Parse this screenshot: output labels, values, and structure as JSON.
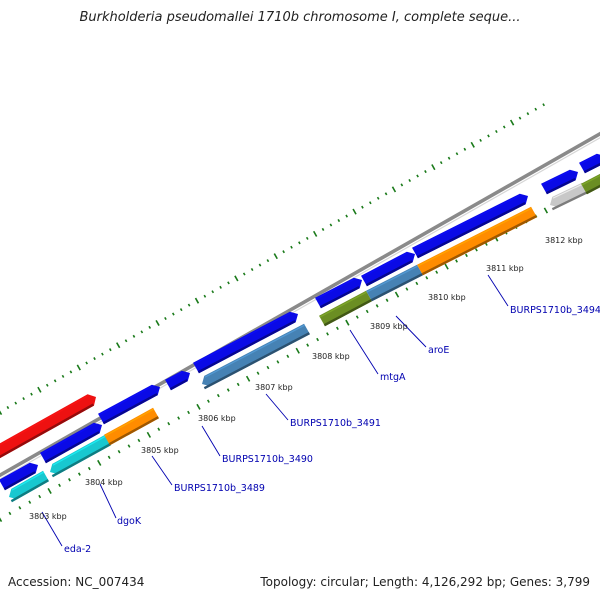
{
  "title": "Burkholderia pseudomallei 1710b chromosome I, complete seque...",
  "footer": {
    "accession": "Accession: NC_007434",
    "summary": "Topology: circular; Length: 4,126,292 bp; Genes: 3,799"
  },
  "colors": {
    "forward_gene": "#0a0ae6",
    "reverse_blue": "#4682b4",
    "reverse_orange": "#ff8c00",
    "reverse_cyan": "#18c8d0",
    "reverse_green": "#6b8e23",
    "reverse_grey": "#c8c8c8",
    "red_gene": "#ee1111",
    "backbone": "#8a8a8a",
    "ticks": "#1a7a1a",
    "label": "#0000b0"
  },
  "scale_labels": [
    "3803 kbp",
    "3804 kbp",
    "3805 kbp",
    "3806 kbp",
    "3807 kbp",
    "3808 kbp",
    "3809 kbp",
    "3810 kbp",
    "3811 kbp",
    "3812 kbp"
  ],
  "gene_labels": [
    "eda-2",
    "dgoK",
    "BURPS1710b_3489",
    "BURPS1710b_3490",
    "BURPS1710b_3491",
    "mtgA",
    "aroE",
    "BURPS1710b_3494"
  ]
}
